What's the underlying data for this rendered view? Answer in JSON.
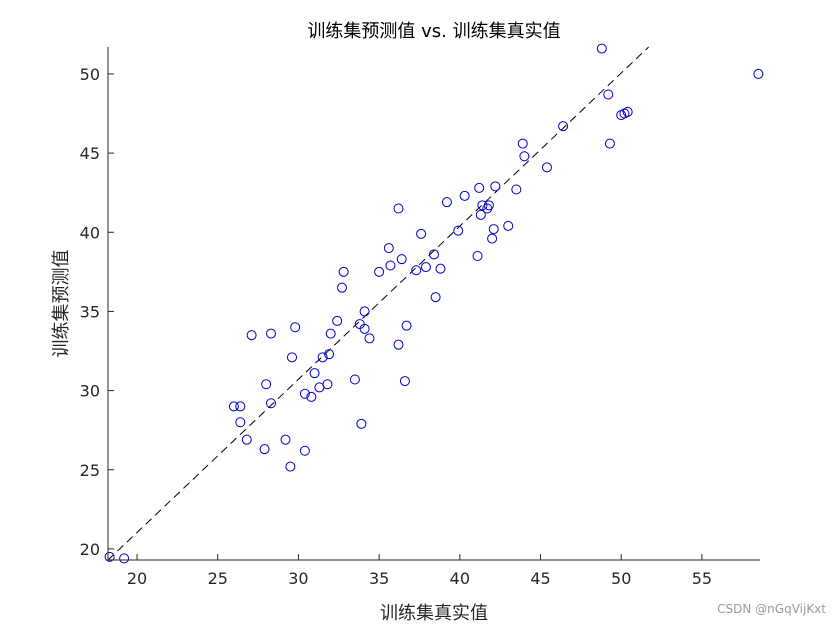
{
  "chart_data": {
    "type": "scatter",
    "title": "训练集预测值 vs. 训练集真实值",
    "xlabel": "训练集真实值",
    "ylabel": "训练集预测值",
    "xlim": [
      18.2,
      58.6
    ],
    "ylim": [
      19.3,
      51.7
    ],
    "xticks": [
      20,
      25,
      30,
      35,
      40,
      45,
      50,
      55
    ],
    "yticks": [
      20,
      25,
      30,
      35,
      40,
      45,
      50
    ],
    "marker_color": "#0000cc",
    "reference_line": {
      "style": "dashed",
      "color": "#000000",
      "from": [
        18.2,
        18.2
      ],
      "to": [
        58.6,
        58.6
      ]
    },
    "x": [
      18.3,
      19.2,
      26.0,
      26.4,
      26.4,
      26.8,
      27.1,
      27.9,
      28.0,
      28.3,
      28.3,
      29.2,
      29.5,
      29.6,
      29.8,
      30.4,
      30.4,
      30.8,
      31.0,
      31.3,
      31.5,
      31.8,
      31.9,
      32.0,
      32.4,
      32.7,
      32.8,
      33.5,
      33.8,
      33.9,
      34.1,
      34.1,
      34.4,
      35.0,
      35.6,
      35.7,
      36.2,
      36.2,
      36.4,
      36.6,
      36.7,
      37.3,
      37.6,
      37.9,
      38.4,
      38.5,
      38.8,
      39.2,
      39.9,
      40.3,
      41.1,
      41.2,
      41.3,
      41.4,
      41.7,
      41.8,
      42.0,
      42.1,
      42.2,
      43.0,
      43.5,
      43.9,
      44.0,
      45.4,
      46.4,
      48.8,
      49.2,
      49.3,
      50.0,
      50.2,
      50.4,
      58.5
    ],
    "y": [
      19.5,
      19.4,
      29.0,
      29.0,
      28.0,
      26.9,
      33.5,
      26.3,
      30.4,
      29.2,
      33.6,
      26.9,
      25.2,
      32.1,
      34.0,
      26.2,
      29.8,
      29.6,
      31.1,
      30.2,
      32.1,
      30.4,
      32.3,
      33.6,
      34.4,
      36.5,
      37.5,
      30.7,
      34.2,
      27.9,
      33.9,
      35.0,
      33.3,
      37.5,
      39.0,
      37.9,
      32.9,
      41.5,
      38.3,
      30.6,
      34.1,
      37.6,
      39.9,
      37.8,
      38.6,
      35.9,
      37.7,
      41.9,
      40.1,
      42.3,
      38.5,
      42.8,
      41.1,
      41.7,
      41.5,
      41.7,
      39.6,
      40.2,
      42.9,
      40.4,
      42.7,
      45.6,
      44.8,
      44.1,
      46.7,
      51.6,
      48.7,
      45.6,
      47.4,
      47.5,
      47.6,
      50.0
    ]
  },
  "watermark": "CSDN @nGqVijKxt"
}
